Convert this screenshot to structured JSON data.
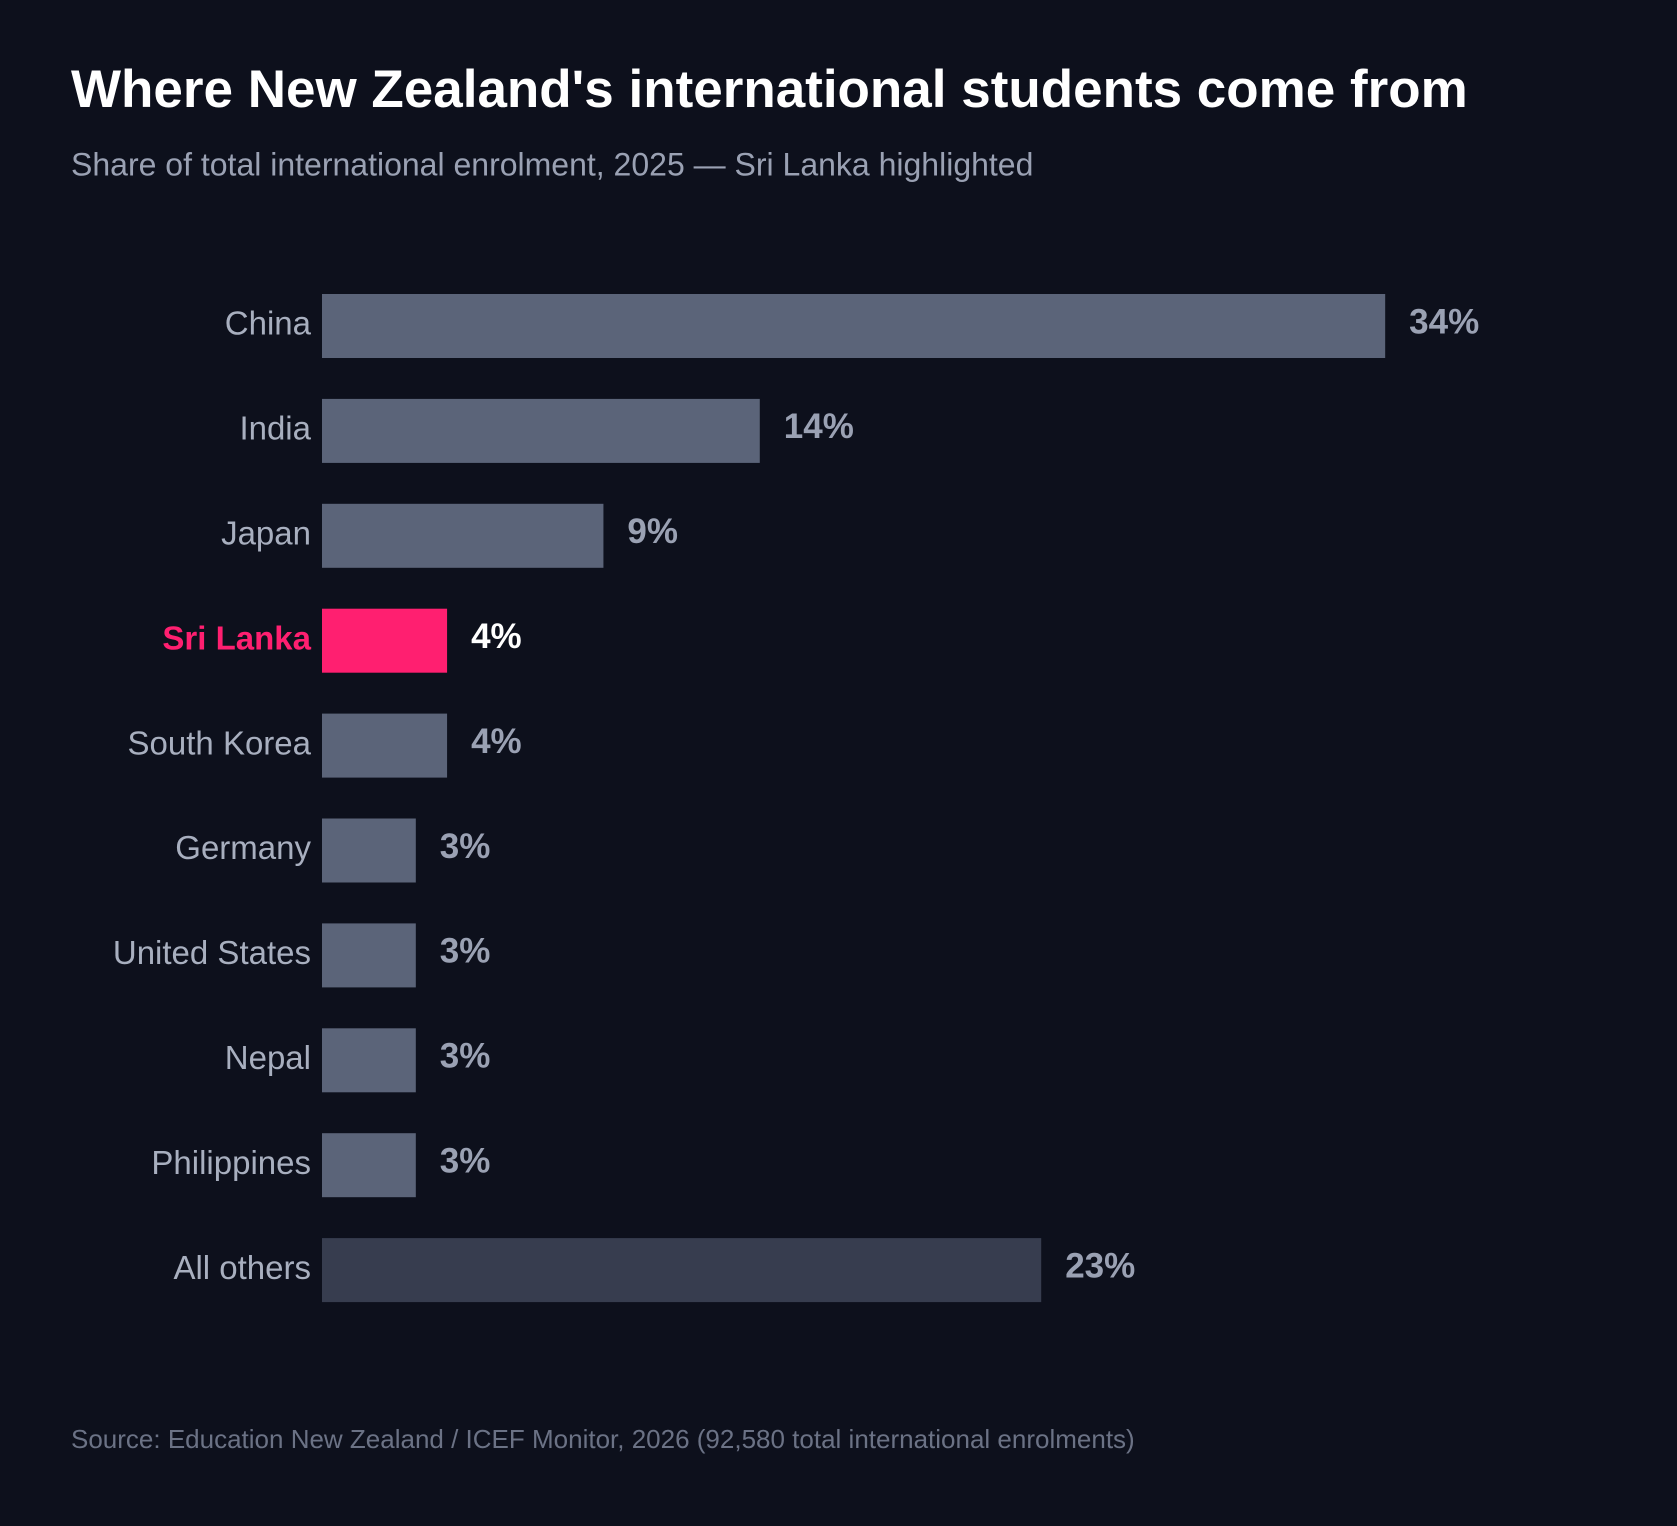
{
  "chart_data": {
    "type": "bar",
    "orientation": "horizontal",
    "title": "Where New Zealand's international students come from",
    "subtitle": "Share of total international enrolment, 2025 — Sri Lanka highlighted",
    "source": "Source: Education New Zealand / ICEF Monitor, 2026 (92,580 total international enrolments)",
    "categories": [
      "China",
      "India",
      "Japan",
      "Sri Lanka",
      "South Korea",
      "Germany",
      "United States",
      "Nepal",
      "Philippines",
      "All others"
    ],
    "values": [
      34,
      14,
      9,
      4,
      4,
      3,
      3,
      3,
      3,
      23
    ],
    "value_labels": [
      "34%",
      "14%",
      "9%",
      "4%",
      "4%",
      "3%",
      "3%",
      "3%",
      "3%",
      "23%"
    ],
    "colors": [
      "#5b6479",
      "#5b6479",
      "#5b6479",
      "#ff1f70",
      "#5b6479",
      "#5b6479",
      "#5b6479",
      "#5b6479",
      "#5b6479",
      "#373d4f"
    ],
    "highlight": "Sri Lanka",
    "grid": false
  }
}
